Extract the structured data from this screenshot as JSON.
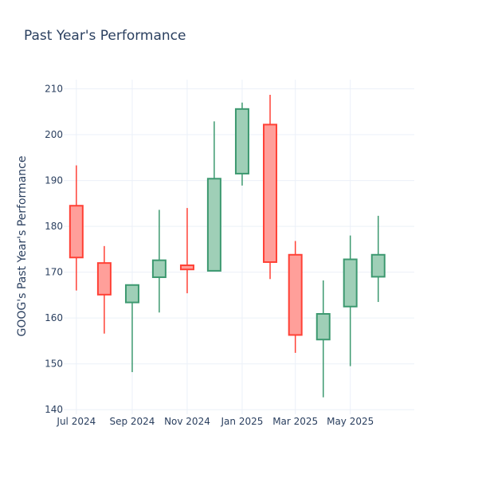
{
  "chart_data": {
    "type": "candlestick",
    "title": "Past Year's Performance",
    "ylabel": "GOOG's Past Year's Performance",
    "xlabel": "",
    "ylim": [
      139,
      212
    ],
    "yticks": [
      140,
      150,
      160,
      170,
      180,
      190,
      200,
      210
    ],
    "xlim": [
      "2024-06-17",
      "2025-07-11"
    ],
    "xticks": [
      {
        "label": "Jul 2024",
        "date": "2024-07-01"
      },
      {
        "label": "Sep 2024",
        "date": "2024-09-01"
      },
      {
        "label": "Nov 2024",
        "date": "2024-11-01"
      },
      {
        "label": "Jan 2025",
        "date": "2025-01-01"
      },
      {
        "label": "Mar 2025",
        "date": "2025-03-01"
      },
      {
        "label": "May 2025",
        "date": "2025-05-01"
      }
    ],
    "grid": true,
    "legend": false,
    "colors": {
      "increasing_line": "#3d9970",
      "increasing_fill": "#9fcfb7",
      "decreasing_line": "#ff4136",
      "decreasing_fill": "#ff9f9a"
    },
    "candles": [
      {
        "date": "2024-07-01",
        "open": 184.5,
        "high": 193.3,
        "low": 166.0,
        "close": 173.2
      },
      {
        "date": "2024-08-01",
        "open": 172.0,
        "high": 175.7,
        "low": 156.6,
        "close": 165.1
      },
      {
        "date": "2024-09-01",
        "open": 163.4,
        "high": 167.2,
        "low": 148.2,
        "close": 167.2
      },
      {
        "date": "2024-10-01",
        "open": 168.9,
        "high": 183.6,
        "low": 161.2,
        "close": 172.6
      },
      {
        "date": "2024-11-01",
        "open": 171.5,
        "high": 184.0,
        "low": 165.4,
        "close": 170.6
      },
      {
        "date": "2024-12-01",
        "open": 170.3,
        "high": 202.9,
        "low": 170.3,
        "close": 190.4
      },
      {
        "date": "2025-01-01",
        "open": 191.5,
        "high": 207.0,
        "low": 188.9,
        "close": 205.6
      },
      {
        "date": "2025-02-01",
        "open": 202.2,
        "high": 208.7,
        "low": 168.5,
        "close": 172.2
      },
      {
        "date": "2025-03-01",
        "open": 173.8,
        "high": 176.8,
        "low": 152.4,
        "close": 156.3
      },
      {
        "date": "2025-04-01",
        "open": 155.3,
        "high": 168.2,
        "low": 142.7,
        "close": 160.9
      },
      {
        "date": "2025-05-01",
        "open": 162.5,
        "high": 178.0,
        "low": 149.5,
        "close": 172.8
      },
      {
        "date": "2025-06-01",
        "open": 169.0,
        "high": 182.3,
        "low": 163.5,
        "close": 173.8
      }
    ]
  }
}
